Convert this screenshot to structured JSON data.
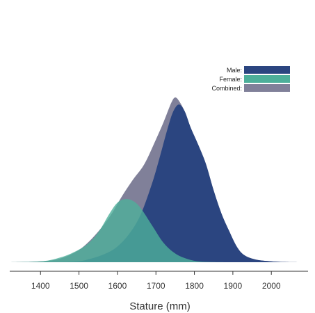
{
  "chart_data": {
    "type": "area",
    "xlabel": "Stature (mm)",
    "x_ticks": [
      1400,
      1500,
      1600,
      1700,
      1800,
      1900,
      2000
    ],
    "xlim": [
      1320,
      2090
    ],
    "ylim": [
      0,
      1
    ],
    "legend_placement": "top-right",
    "grid": false,
    "series": [
      {
        "name": "Combined:",
        "color": "#808099",
        "opacity": 1,
        "x": [
          1320,
          1400,
          1450,
          1500,
          1540,
          1580,
          1610,
          1640,
          1670,
          1700,
          1720,
          1740,
          1750,
          1760,
          1775,
          1790,
          1810,
          1830,
          1850,
          1870,
          1890,
          1910,
          1930,
          1960,
          2000,
          2040,
          2090
        ],
        "y": [
          0.0,
          0.005,
          0.02,
          0.07,
          0.15,
          0.26,
          0.37,
          0.47,
          0.56,
          0.7,
          0.8,
          0.91,
          0.94,
          0.92,
          0.86,
          0.77,
          0.67,
          0.56,
          0.41,
          0.28,
          0.18,
          0.09,
          0.04,
          0.015,
          0.005,
          0.001,
          0.0
        ]
      },
      {
        "name": "Male:",
        "color": "#2b4580",
        "opacity": 1,
        "x": [
          1320,
          1480,
          1530,
          1570,
          1600,
          1630,
          1660,
          1690,
          1710,
          1730,
          1745,
          1760,
          1775,
          1790,
          1810,
          1830,
          1850,
          1870,
          1890,
          1910,
          1930,
          1960,
          2000,
          2040,
          2090
        ],
        "y": [
          0.0,
          0.003,
          0.02,
          0.05,
          0.09,
          0.16,
          0.27,
          0.45,
          0.6,
          0.76,
          0.86,
          0.9,
          0.86,
          0.77,
          0.67,
          0.56,
          0.41,
          0.28,
          0.18,
          0.09,
          0.04,
          0.015,
          0.005,
          0.001,
          0.0
        ]
      },
      {
        "name": "Female:",
        "color": "#4daf9a",
        "opacity": 0.8,
        "x": [
          1320,
          1400,
          1440,
          1480,
          1520,
          1550,
          1580,
          1600,
          1620,
          1640,
          1660,
          1690,
          1720,
          1750,
          1780,
          1810,
          1850,
          1900
        ],
        "y": [
          0.0,
          0.005,
          0.02,
          0.05,
          0.1,
          0.17,
          0.28,
          0.34,
          0.36,
          0.35,
          0.31,
          0.21,
          0.11,
          0.05,
          0.02,
          0.005,
          0.001,
          0.0
        ]
      }
    ],
    "legend_order": [
      "Male:",
      "Female:",
      "Combined:"
    ]
  }
}
